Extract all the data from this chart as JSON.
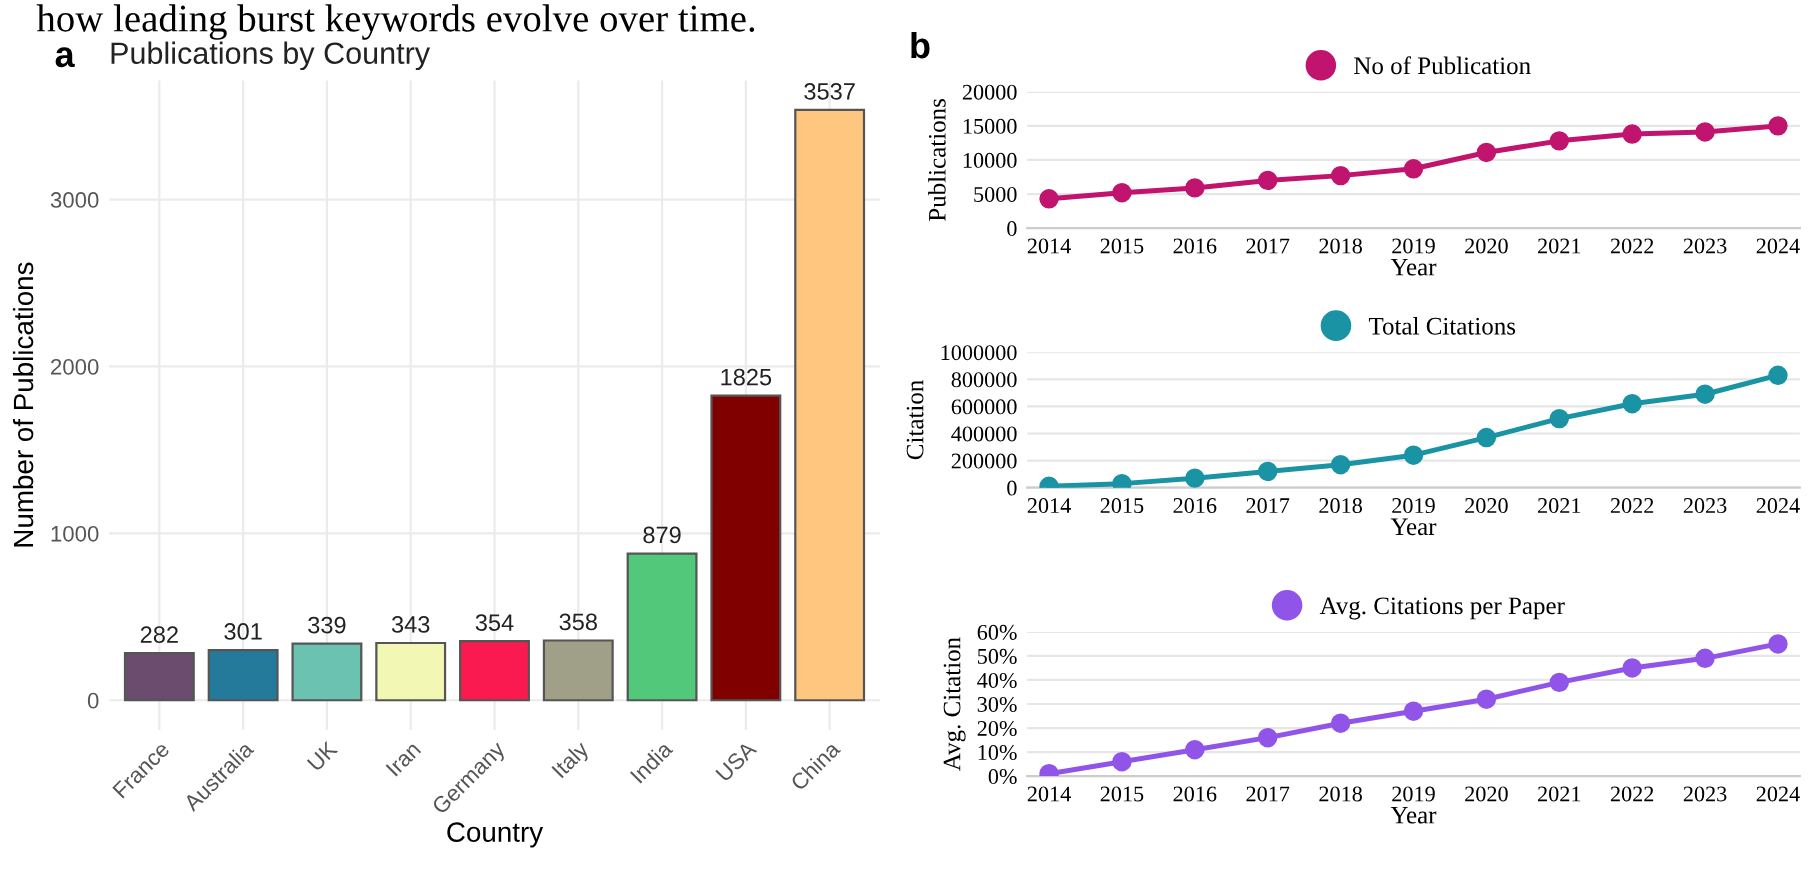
{
  "chart_data": [
    {
      "type": "bar",
      "title": "Publications by Country",
      "xlabel": "Country",
      "ylabel": "Number of Publications",
      "categories": [
        "France",
        "Australia",
        "UK",
        "Iran",
        "Germany",
        "Italy",
        "India",
        "USA",
        "China"
      ],
      "values": [
        282,
        301,
        339,
        343,
        354,
        358,
        879,
        1825,
        3537
      ],
      "colors": [
        "#6b4c6e",
        "#247a9a",
        "#6cc2b0",
        "#f2f8b4",
        "#fa1a50",
        "#a09f88",
        "#52c87a",
        "#800000",
        "#fec67e"
      ],
      "ylim": [
        -177,
        3714
      ],
      "yticks": [
        0,
        1000,
        2000,
        3000
      ],
      "grid": true,
      "data_labels": true,
      "annotations": [
        "a",
        "how leading burst keywords evolve over time."
      ]
    },
    {
      "type": "line",
      "xlabel": "Year",
      "ylabel": "Publications",
      "x": [
        2014,
        2015,
        2016,
        2017,
        2018,
        2019,
        2020,
        2021,
        2022,
        2023,
        2024
      ],
      "series": [
        {
          "name": "No of Publication",
          "color": "#c0146f",
          "values": [
            4300,
            5200,
            5900,
            7000,
            7700,
            8700,
            11100,
            12800,
            13800,
            14100,
            15000
          ]
        }
      ],
      "xlim": [
        2013.7,
        2024.3
      ],
      "xticks": [
        2014,
        2015,
        2016,
        2017,
        2018,
        2019,
        2020,
        2021,
        2022,
        2023,
        2024
      ],
      "ylim": [
        0,
        20000
      ],
      "yticks": [
        0,
        5000,
        10000,
        15000,
        20000
      ],
      "grid": "y",
      "legend": "top",
      "marker": "circle",
      "annotations": [
        "b"
      ]
    },
    {
      "type": "line",
      "xlabel": "Year",
      "ylabel": "Citation",
      "x": [
        2014,
        2015,
        2016,
        2017,
        2018,
        2019,
        2020,
        2021,
        2022,
        2023,
        2024
      ],
      "series": [
        {
          "name": "Total Citations",
          "color": "#1a94a4",
          "values": [
            10000,
            30000,
            70000,
            120000,
            170000,
            240000,
            370000,
            510000,
            620000,
            690000,
            830000
          ]
        }
      ],
      "xlim": [
        2013.7,
        2024.3
      ],
      "xticks": [
        2014,
        2015,
        2016,
        2017,
        2018,
        2019,
        2020,
        2021,
        2022,
        2023,
        2024
      ],
      "ylim": [
        0,
        1000000
      ],
      "yticks": [
        0,
        200000,
        400000,
        600000,
        800000,
        1000000
      ],
      "grid": "y",
      "legend": "top",
      "marker": "circle"
    },
    {
      "type": "line",
      "xlabel": "Year",
      "ylabel": "Avg. Citation",
      "x": [
        2014,
        2015,
        2016,
        2017,
        2018,
        2019,
        2020,
        2021,
        2022,
        2023,
        2024
      ],
      "series": [
        {
          "name": "Avg. Citations per Paper",
          "color": "#9055e8",
          "values": [
            1,
            6,
            11,
            16,
            22,
            27,
            32,
            39,
            45,
            49,
            55
          ]
        }
      ],
      "xlim": [
        2013.7,
        2024.3
      ],
      "xticks": [
        2014,
        2015,
        2016,
        2017,
        2018,
        2019,
        2020,
        2021,
        2022,
        2023,
        2024
      ],
      "ylim": [
        0,
        60
      ],
      "yticks": [
        {
          "value": 0,
          "label": "0%"
        },
        {
          "value": 10,
          "label": "10%"
        },
        {
          "value": 20,
          "label": "20%"
        },
        {
          "value": 30,
          "label": "30%"
        },
        {
          "value": 40,
          "label": "40%"
        },
        {
          "value": 50,
          "label": "50%"
        },
        {
          "value": 60,
          "label": "60%"
        }
      ],
      "grid": "y",
      "legend": "top",
      "marker": "circle"
    }
  ]
}
